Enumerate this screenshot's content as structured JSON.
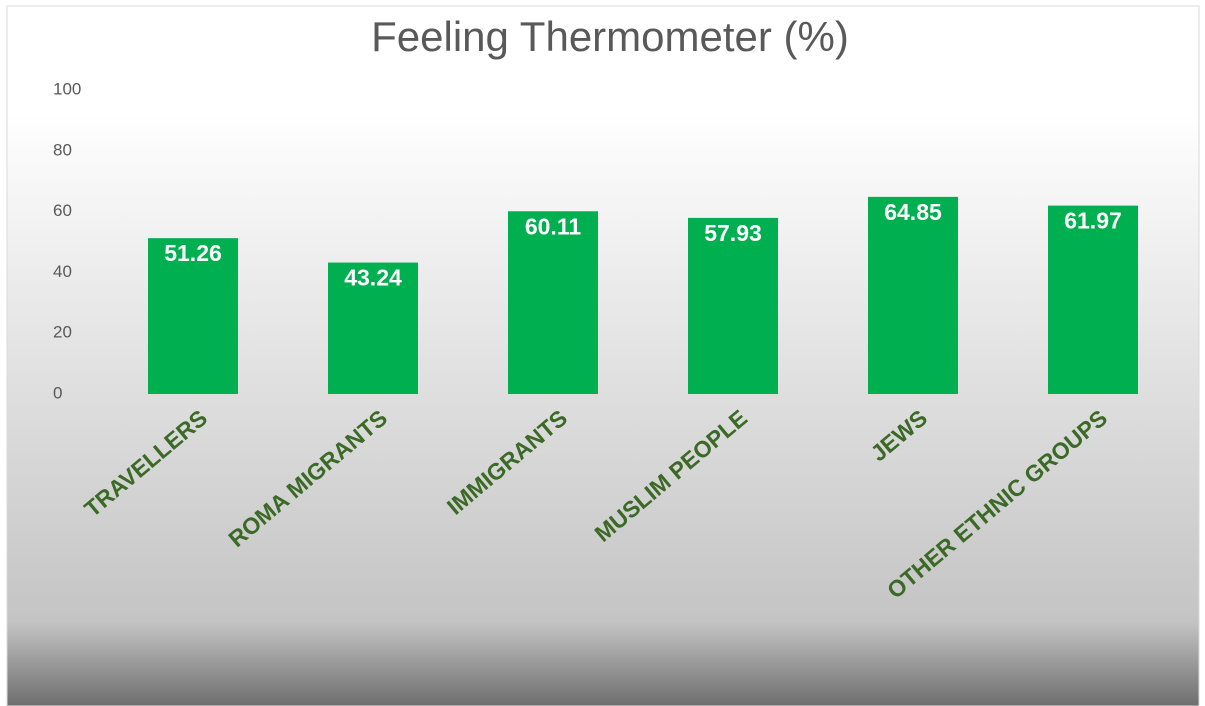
{
  "chart_data": {
    "type": "bar",
    "title": "Feeling Thermometer (%)",
    "categories": [
      "TRAVELLERS",
      "ROMA MIGRANTS",
      "IMMIGRANTS",
      "MUSLIM PEOPLE",
      "JEWS",
      "OTHER ETHNIC GROUPS"
    ],
    "values": [
      51.26,
      43.24,
      60.11,
      57.93,
      64.85,
      61.97
    ],
    "color": "#00b050",
    "ylim": [
      0,
      100
    ],
    "yticks": [
      0,
      20,
      40,
      60,
      80,
      100
    ],
    "grid": false
  }
}
